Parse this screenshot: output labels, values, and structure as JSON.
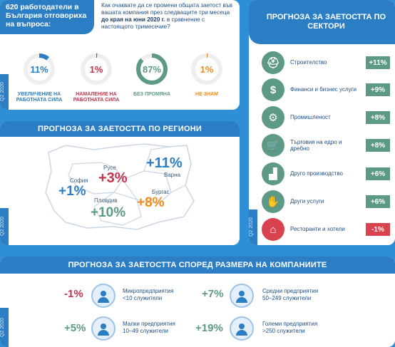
{
  "survey": {
    "headline": "620 работодатели в България отговориха на въпроса:",
    "question_pre": "Как очаквате да се промени общата заетост във вашата компания през следващите три месеца ",
    "question_bold": "до края на юни 2020 г.",
    "question_post": " в сравнение с настоящото тримесечие?",
    "quarter": "Q2 2020",
    "answers": [
      {
        "value": "11%",
        "fraction": 0.11,
        "label": "УВЕЛИЧЕНИЕ НА РАБОТНАТА СИЛА",
        "color": "#2b7ec4"
      },
      {
        "value": "1%",
        "fraction": 0.01,
        "label": "НАМАЛЕНИЕ НА РАБОТНАТА СИЛА",
        "color": "#c3344a"
      },
      {
        "value": "87%",
        "fraction": 0.87,
        "label": "БЕЗ ПРОМЯНА",
        "color": "#5c9a86"
      },
      {
        "value": "1%",
        "fraction": 0.01,
        "label": "НЕ ЗНАМ",
        "color": "#f08a1c"
      }
    ]
  },
  "sectors": {
    "title": "ПРОГНОЗА ЗА ЗАЕТОСТТА ПО СЕКТОРИ",
    "quarter": "Q2 2020",
    "items": [
      {
        "label": "Строителство",
        "value": "+11%",
        "icon": "helmet-icon",
        "glyph": "⛑",
        "color": "#5c9a86"
      },
      {
        "label": "Финанси и бизнес услуги",
        "value": "+9%",
        "icon": "dollar-icon",
        "glyph": "$",
        "color": "#5c9a86"
      },
      {
        "label": "Промишленост",
        "value": "+8%",
        "icon": "gears-icon",
        "glyph": "⚙",
        "color": "#5c9a86"
      },
      {
        "label": "Търговия на едро и дребно",
        "value": "+8%",
        "icon": "cart-icon",
        "glyph": "🛒",
        "color": "#5c9a86"
      },
      {
        "label": "Друго производство",
        "value": "+6%",
        "icon": "factory-icon",
        "glyph": "▟",
        "color": "#5c9a86"
      },
      {
        "label": "Други услуги",
        "value": "+6%",
        "icon": "hand-coins-icon",
        "glyph": "✋",
        "color": "#5c9a86"
      },
      {
        "label": "Ресторанти и хотели",
        "value": "-1%",
        "icon": "hotel-icon",
        "glyph": "⌂",
        "color": "#d9434f"
      }
    ]
  },
  "regions": {
    "title": "ПРОГНОЗА ЗА ЗАЕТОСТТА ПО РЕГИОНИ",
    "quarter": "Q2 2020",
    "items": [
      {
        "name": "София",
        "value": "+1%",
        "color": "#2b7ec4"
      },
      {
        "name": "Русе",
        "value": "+3%",
        "color": "#c3344a"
      },
      {
        "name": "Варна",
        "value": "+11%",
        "color": "#2b7ec4"
      },
      {
        "name": "Пловдив",
        "value": "+10%",
        "color": "#5c9a86"
      },
      {
        "name": "Бургас",
        "value": "+8%",
        "color": "#f08a1c"
      }
    ]
  },
  "sizes": {
    "title": "ПРОГНОЗА ЗА ЗАЕТОСТТА СПОРЕД РАЗМЕРА НА КОМПАНИИТЕ",
    "quarter": "Q2 2020",
    "items": [
      {
        "value": "-1%",
        "name": "Микропредприятия",
        "range": "<10 служители",
        "color": "#c3344a",
        "icon": "micro-company-icon"
      },
      {
        "value": "+7%",
        "name": "Средни предприятия",
        "range": "50–249 служители",
        "color": "#5c9a86",
        "icon": "medium-company-icon"
      },
      {
        "value": "+5%",
        "name": "Малки предприятия",
        "range": "10–49 служители",
        "color": "#5c9a86",
        "icon": "small-company-icon"
      },
      {
        "value": "+19%",
        "name": "Големи предприятия",
        "range": ">250 служители",
        "color": "#5c9a86",
        "icon": "large-company-icon"
      }
    ]
  }
}
